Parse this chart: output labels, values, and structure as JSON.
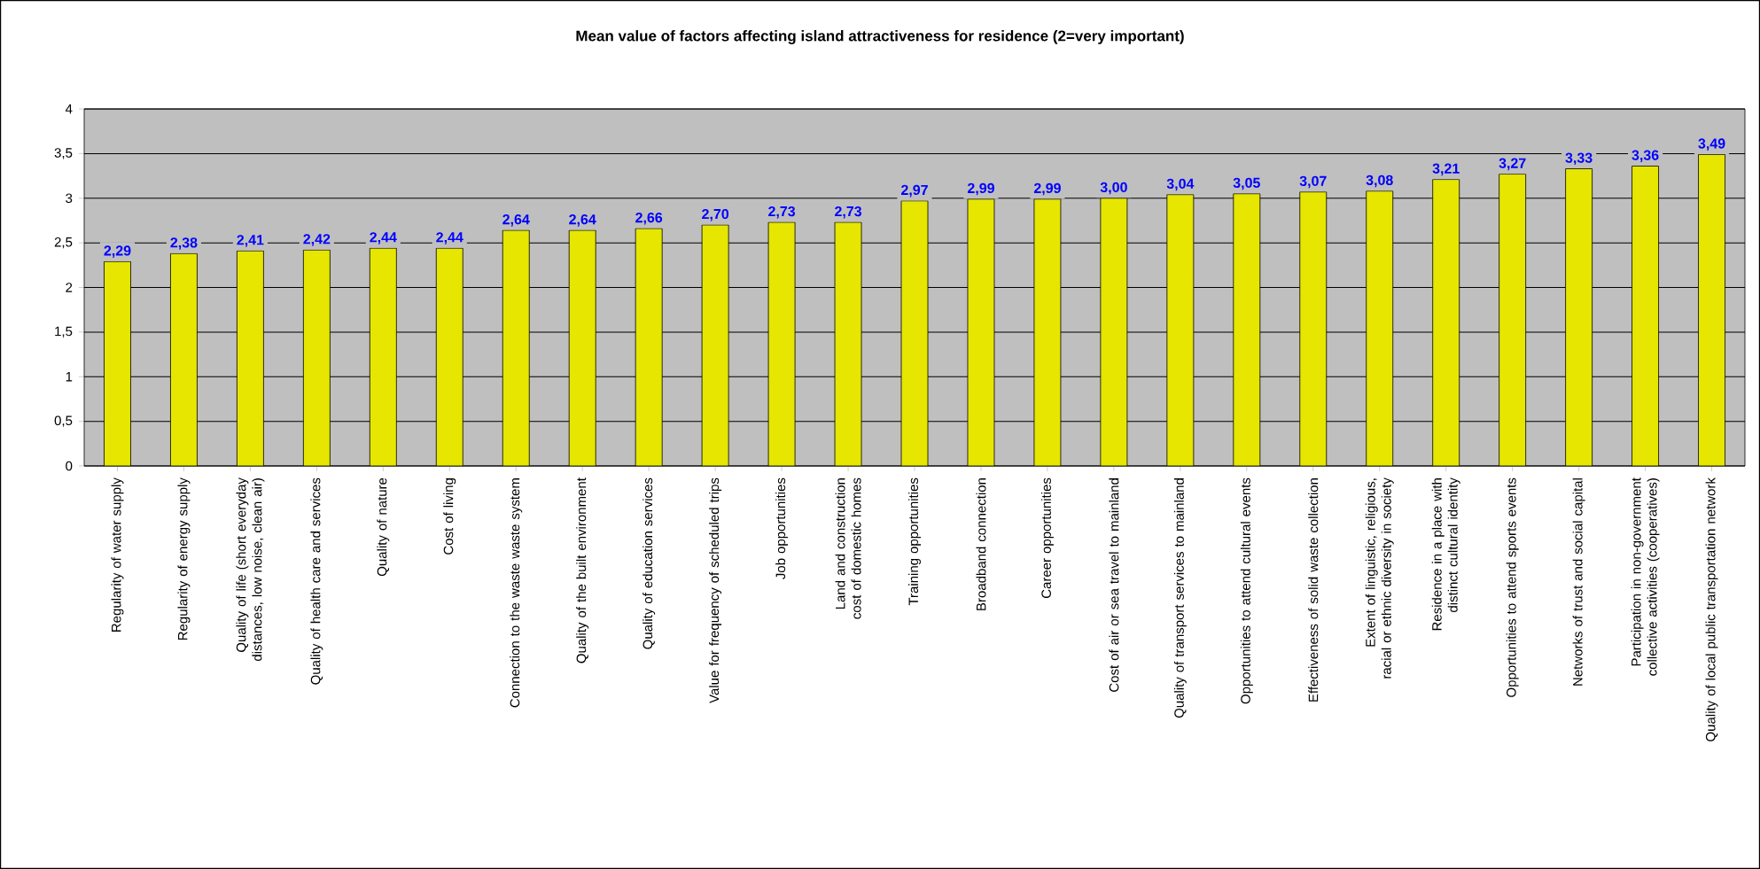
{
  "chart_data": {
    "type": "bar",
    "title": "Mean value of factors affecting island attractiveness for residence (2=very important)",
    "categories": [
      "Regularity of water supply",
      "Regularity of energy supply",
      "Quality of life (short everyday distances, low noise, clean air)",
      "Quality of health care and services",
      "Quality of nature",
      "Cost of living",
      "Connection to the waste waste system",
      "Quality of the built environment",
      "Quality of education services",
      "Value for frequency of scheduled trips",
      "Job opportunities",
      "Land and construction cost of domestic homes",
      "Training opportunities",
      "Broadband connection",
      "Career opportunities",
      "Cost of air or sea travel to mainland",
      "Quality of transport services to mainland",
      "Opportunities to attend cultural events",
      "Effectiveness of solid waste collection",
      "Extent of linguistic, religious, racial or ethnic diversity in society",
      "Residence in a place with distinct cultural identity",
      "Opportunities to attend sports events",
      "Networks of trust and social capital",
      "Participation in non-government collective activities (cooperatives)",
      "Quality of local public transportation network"
    ],
    "values": [
      2.29,
      2.38,
      2.41,
      2.42,
      2.44,
      2.44,
      2.64,
      2.64,
      2.66,
      2.7,
      2.73,
      2.73,
      2.97,
      2.99,
      2.99,
      3.0,
      3.04,
      3.05,
      3.07,
      3.08,
      3.21,
      3.27,
      3.33,
      3.36,
      3.49
    ],
    "value_labels": [
      "2,29",
      "2,38",
      "2,41",
      "2,42",
      "2,44",
      "2,44",
      "2,64",
      "2,64",
      "2,66",
      "2,70",
      "2,73",
      "2,73",
      "2,97",
      "2,99",
      "2,99",
      "3,00",
      "3,04",
      "3,05",
      "3,07",
      "3,08",
      "3,21",
      "3,27",
      "3,33",
      "3,36",
      "3,49"
    ],
    "color": "#e6e600",
    "ylim": [
      0,
      4
    ],
    "yticks": [
      0,
      {
        "value": 0.5,
        "label": "0,5"
      },
      1,
      {
        "value": 1.5,
        "label": "1,5"
      },
      2,
      {
        "value": 2.5,
        "label": "2,5"
      },
      3,
      {
        "value": 3.5,
        "label": "3,5"
      },
      4
    ],
    "grid": "y"
  }
}
